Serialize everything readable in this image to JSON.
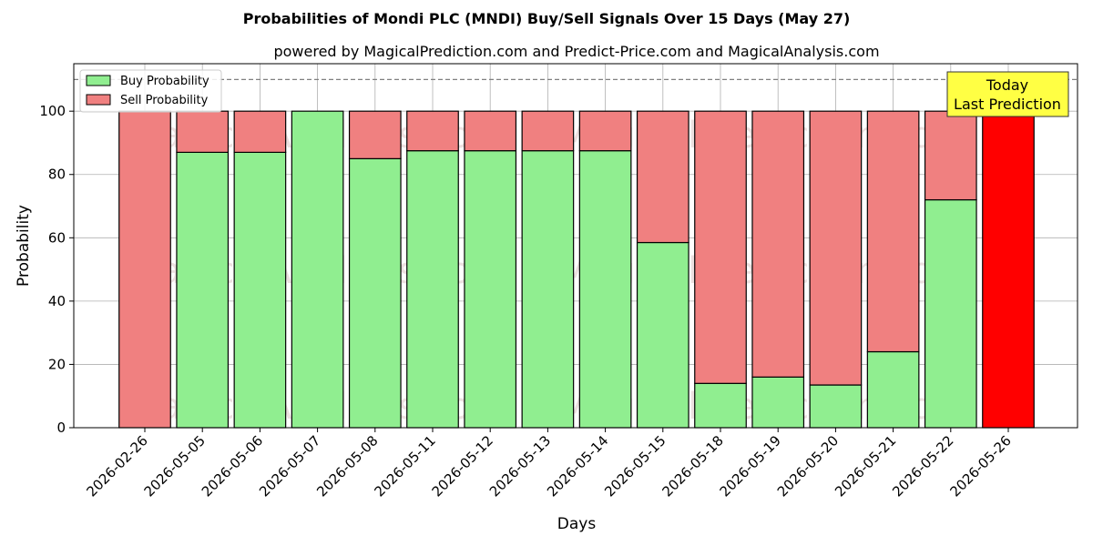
{
  "chart_data": {
    "type": "bar",
    "stacked": true,
    "title": "Probabilities of Mondi PLC (MNDI) Buy/Sell Signals Over 15 Days (May 27)",
    "subtitle": "powered by MagicalPrediction.com and Predict-Price.com and MagicalAnalysis.com",
    "xlabel": "Days",
    "ylabel": "Probability",
    "ylim": [
      0,
      115
    ],
    "yticks": [
      0,
      20,
      40,
      60,
      80,
      100
    ],
    "grid": true,
    "legend_position": "top-left",
    "reference_line": 110,
    "categories": [
      "2026-02-26",
      "2026-05-05",
      "2026-05-06",
      "2026-05-07",
      "2026-05-08",
      "2026-05-11",
      "2026-05-12",
      "2026-05-13",
      "2026-05-14",
      "2026-05-15",
      "2026-05-18",
      "2026-05-19",
      "2026-05-20",
      "2026-05-21",
      "2026-05-22",
      "2026-05-26"
    ],
    "series": [
      {
        "name": "Buy Probability",
        "color": "#90ee90",
        "values": [
          0,
          87,
          87,
          100,
          85,
          87.5,
          87.5,
          87.5,
          87.5,
          58.5,
          14,
          16,
          13.5,
          24,
          72,
          0
        ]
      },
      {
        "name": "Sell Probability",
        "color": "#f08080",
        "values": [
          100,
          13,
          13,
          0,
          15,
          12.5,
          12.5,
          12.5,
          12.5,
          41.5,
          86,
          84,
          86.5,
          76,
          28,
          100
        ]
      }
    ],
    "highlight": {
      "index": 15,
      "color": "#ff0000"
    },
    "annotation": {
      "lines": [
        "Today",
        "Last Prediction"
      ],
      "background": "#ffff44"
    },
    "watermarks": [
      "MagicalAnalysis.com",
      "MagicalPrediction.com"
    ]
  }
}
